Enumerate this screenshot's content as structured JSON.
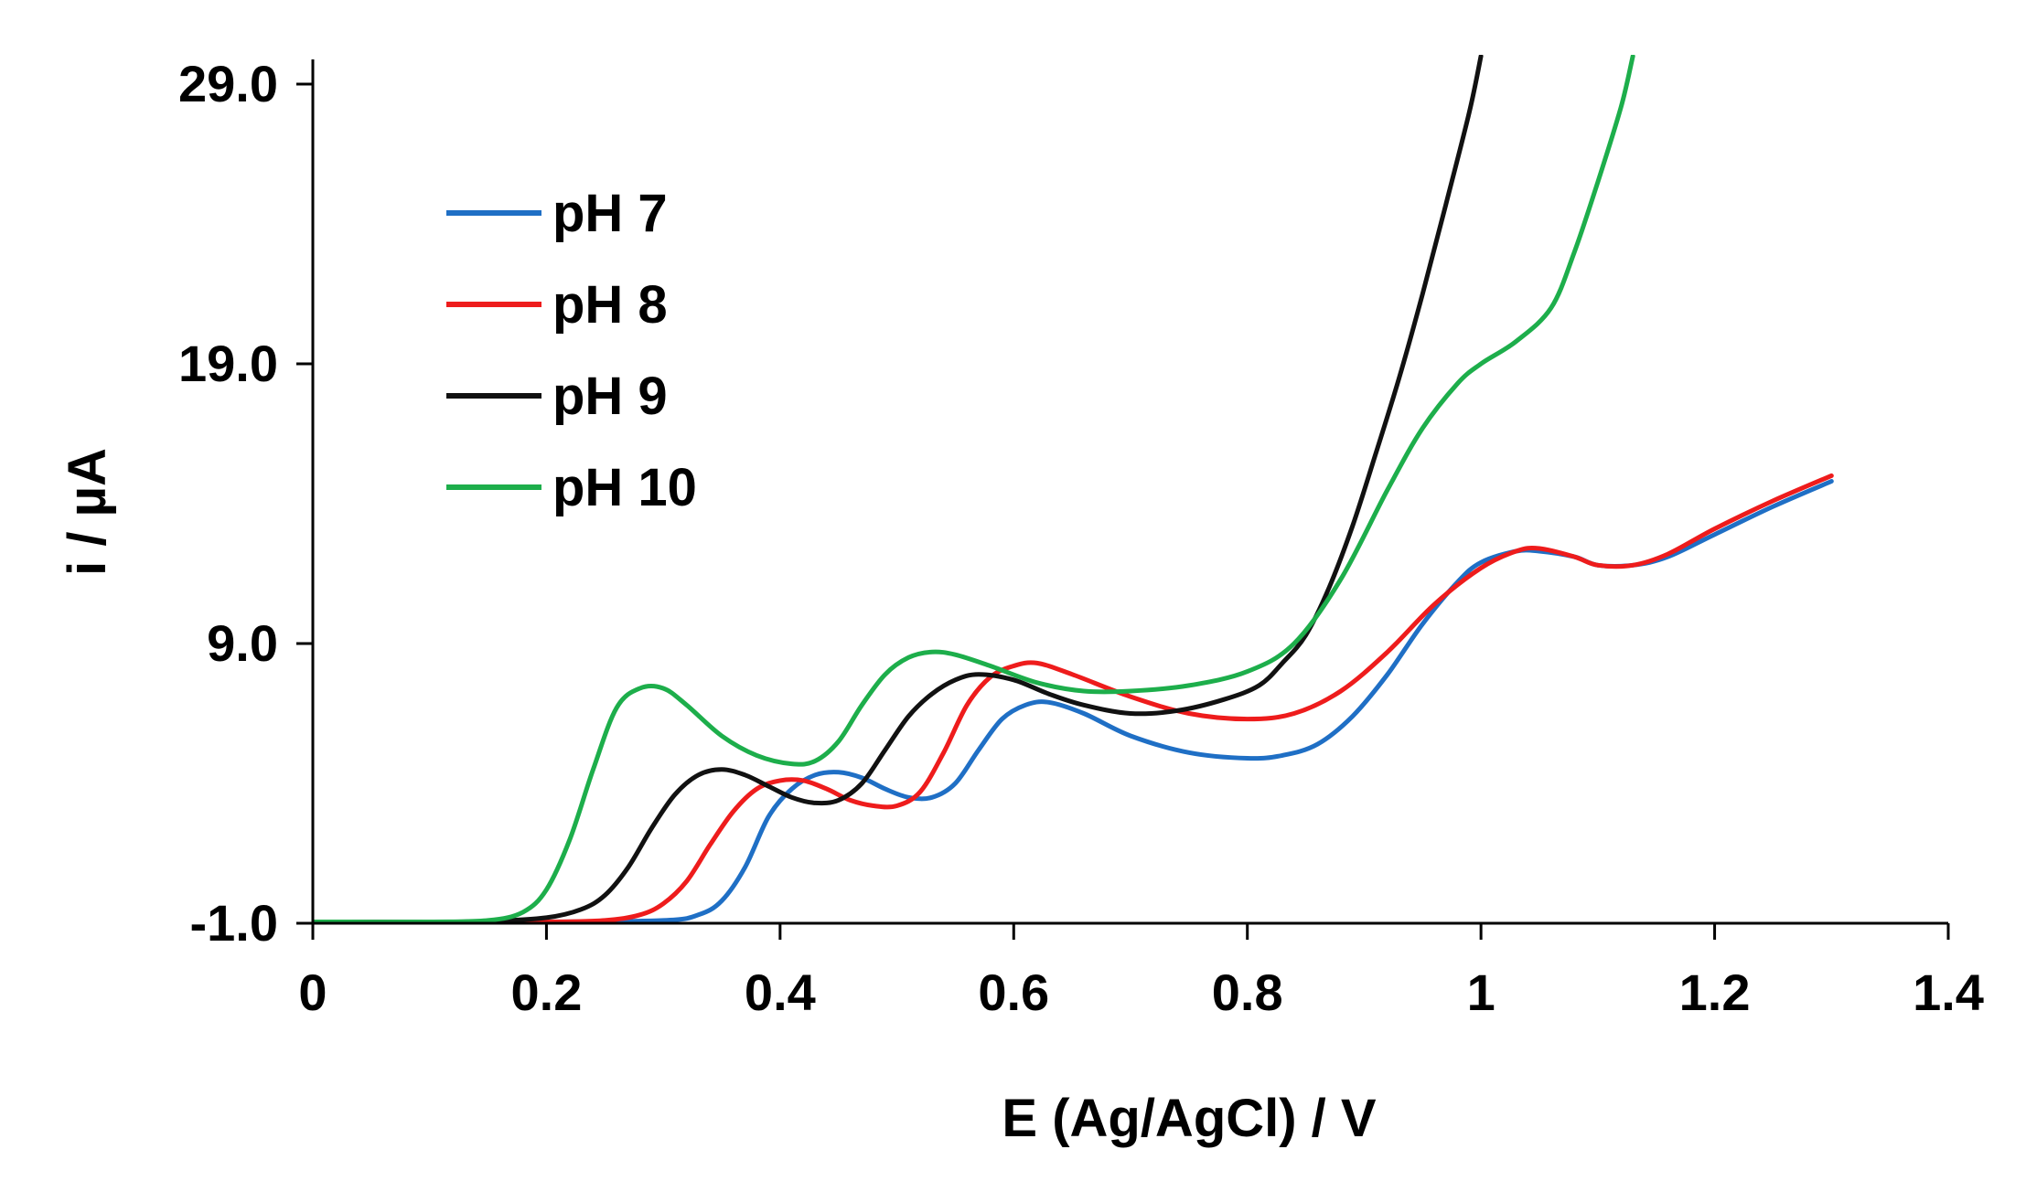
{
  "chart_data": {
    "type": "line",
    "title": "",
    "xlabel": "E (Ag/AgCl) / V",
    "ylabel": "i / µA",
    "xlim": [
      0,
      1.4
    ],
    "ylim": [
      -1.0,
      29.0
    ],
    "xticks": [
      0,
      0.2,
      0.4,
      0.6,
      0.8,
      1.0,
      1.2,
      1.4
    ],
    "xtick_labels": [
      "0",
      "0.2",
      "0.4",
      "0.6",
      "0.8",
      "1",
      "1.2",
      "1.4"
    ],
    "yticks": [
      -1.0,
      9.0,
      19.0,
      29.0
    ],
    "ytick_labels": [
      "-1.0",
      "9.0",
      "19.0",
      "29.0"
    ],
    "grid": false,
    "legend_position": "top-left",
    "series": [
      {
        "name": "pH 7",
        "color": "#1F6FC5",
        "x": [
          0,
          0.1,
          0.2,
          0.3,
          0.33,
          0.35,
          0.37,
          0.39,
          0.41,
          0.43,
          0.45,
          0.47,
          0.49,
          0.51,
          0.53,
          0.55,
          0.57,
          0.59,
          0.61,
          0.63,
          0.66,
          0.7,
          0.75,
          0.8,
          0.83,
          0.86,
          0.89,
          0.92,
          0.95,
          0.98,
          1.0,
          1.03,
          1.05,
          1.08,
          1.1,
          1.13,
          1.16,
          1.2,
          1.25,
          1.3
        ],
        "y": [
          -0.95,
          -0.95,
          -0.95,
          -0.9,
          -0.7,
          -0.2,
          1.0,
          2.8,
          3.8,
          4.3,
          4.4,
          4.2,
          3.8,
          3.5,
          3.5,
          4.0,
          5.2,
          6.3,
          6.8,
          6.9,
          6.5,
          5.7,
          5.1,
          4.9,
          5.0,
          5.4,
          6.4,
          7.9,
          9.7,
          11.2,
          11.9,
          12.3,
          12.3,
          12.1,
          11.8,
          11.8,
          12.1,
          12.9,
          13.9,
          14.8
        ]
      },
      {
        "name": "pH 8",
        "color": "#EE1C1C",
        "x": [
          0,
          0.1,
          0.2,
          0.25,
          0.28,
          0.3,
          0.32,
          0.34,
          0.36,
          0.38,
          0.4,
          0.42,
          0.44,
          0.46,
          0.48,
          0.5,
          0.52,
          0.54,
          0.56,
          0.58,
          0.6,
          0.62,
          0.65,
          0.7,
          0.75,
          0.8,
          0.84,
          0.88,
          0.92,
          0.96,
          1.0,
          1.03,
          1.05,
          1.08,
          1.1,
          1.13,
          1.16,
          1.2,
          1.25,
          1.3
        ],
        "y": [
          -0.95,
          -0.95,
          -0.95,
          -0.9,
          -0.7,
          -0.3,
          0.5,
          1.8,
          3.0,
          3.8,
          4.1,
          4.1,
          3.8,
          3.4,
          3.2,
          3.2,
          3.7,
          5.1,
          6.8,
          7.8,
          8.2,
          8.3,
          7.9,
          7.1,
          6.5,
          6.3,
          6.5,
          7.3,
          8.7,
          10.4,
          11.7,
          12.3,
          12.4,
          12.1,
          11.8,
          11.8,
          12.2,
          13.1,
          14.1,
          15.0
        ]
      },
      {
        "name": "pH 9",
        "color": "#111111",
        "x": [
          0,
          0.1,
          0.15,
          0.2,
          0.23,
          0.25,
          0.27,
          0.29,
          0.31,
          0.33,
          0.35,
          0.37,
          0.39,
          0.41,
          0.43,
          0.45,
          0.47,
          0.49,
          0.51,
          0.53,
          0.55,
          0.57,
          0.6,
          0.63,
          0.66,
          0.7,
          0.74,
          0.78,
          0.81,
          0.83,
          0.85,
          0.87,
          0.89,
          0.91,
          0.93,
          0.95,
          0.97,
          0.99,
          1.0
        ],
        "y": [
          -0.95,
          -0.95,
          -0.93,
          -0.8,
          -0.5,
          0.0,
          1.0,
          2.4,
          3.6,
          4.3,
          4.5,
          4.3,
          3.9,
          3.5,
          3.3,
          3.4,
          4.0,
          5.2,
          6.4,
          7.2,
          7.7,
          7.9,
          7.7,
          7.2,
          6.8,
          6.5,
          6.6,
          7.0,
          7.5,
          8.3,
          9.3,
          11.0,
          13.2,
          15.8,
          18.5,
          21.5,
          24.7,
          28.0,
          30.0
        ]
      },
      {
        "name": "pH 10",
        "color": "#1DAE4B",
        "x": [
          0,
          0.1,
          0.15,
          0.18,
          0.2,
          0.22,
          0.24,
          0.26,
          0.28,
          0.3,
          0.32,
          0.35,
          0.38,
          0.41,
          0.43,
          0.45,
          0.47,
          0.49,
          0.51,
          0.53,
          0.55,
          0.58,
          0.62,
          0.66,
          0.7,
          0.75,
          0.8,
          0.84,
          0.88,
          0.92,
          0.95,
          0.98,
          1.0,
          1.03,
          1.06,
          1.08,
          1.1,
          1.12,
          1.13
        ],
        "y": [
          -0.95,
          -0.95,
          -0.9,
          -0.6,
          0.2,
          2.0,
          4.5,
          6.7,
          7.4,
          7.4,
          6.8,
          5.7,
          5.0,
          4.7,
          4.8,
          5.5,
          6.8,
          7.9,
          8.5,
          8.7,
          8.6,
          8.2,
          7.6,
          7.3,
          7.3,
          7.5,
          8.0,
          9.0,
          11.3,
          14.5,
          16.7,
          18.3,
          19.0,
          19.8,
          21.0,
          23.0,
          25.5,
          28.2,
          30.0
        ]
      }
    ]
  }
}
